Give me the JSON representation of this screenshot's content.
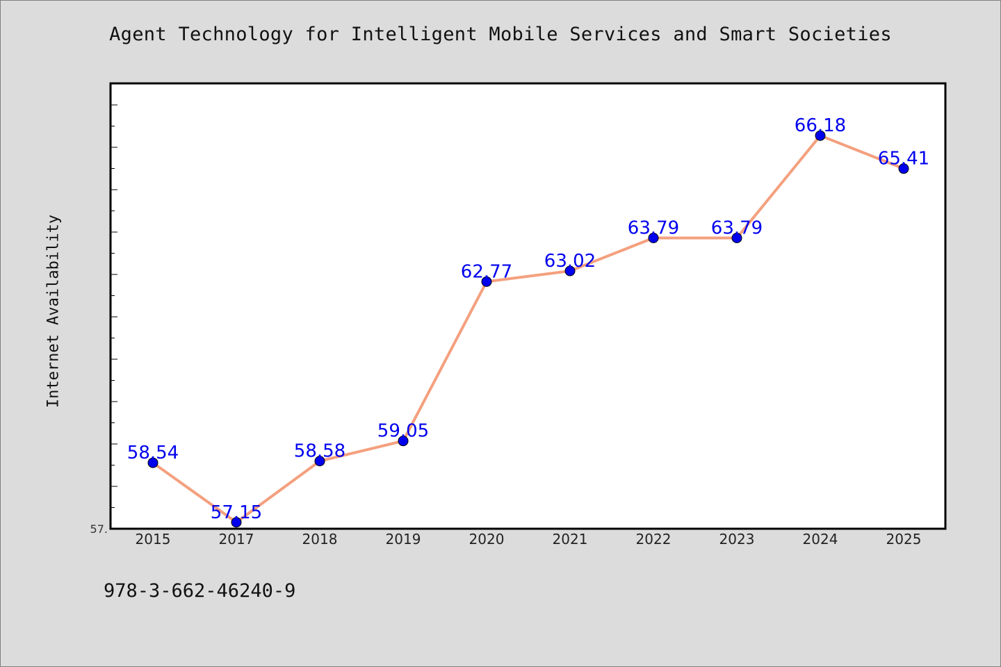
{
  "chart_data": {
    "type": "line",
    "title": "Agent Technology for Intelligent Mobile Services and Smart Societies",
    "xlabel": "",
    "ylabel": "Internet Availability",
    "categories": [
      "2015",
      "2017",
      "2018",
      "2019",
      "2020",
      "2021",
      "2022",
      "2023",
      "2024",
      "2025"
    ],
    "series": [
      {
        "values": [
          58.54,
          57.15,
          58.58,
          59.05,
          62.77,
          63.02,
          63.79,
          63.79,
          66.18,
          65.41
        ],
        "labels": [
          "58.54",
          "57.15",
          "58.58",
          "59.05",
          "62.77",
          "63.02",
          "63.79",
          "63.79",
          "66.18",
          "65.41"
        ]
      }
    ],
    "ylim": [
      57.0,
      67.4
    ],
    "y_tick_label": "57.",
    "grid": false,
    "line_color": "#f4a07e",
    "marker_color": "#0000ee",
    "label_color": "#0000ee"
  },
  "footnote": "978-3-662-46240-9"
}
